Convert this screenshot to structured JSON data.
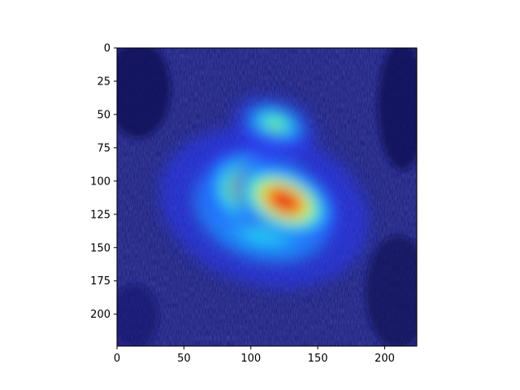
{
  "chart_data": {
    "type": "heatmap",
    "title": "",
    "xlabel": "",
    "ylabel": "",
    "xlim": [
      0,
      224
    ],
    "ylim": [
      224,
      0
    ],
    "x_ticks": [
      0,
      50,
      100,
      150,
      200
    ],
    "y_ticks": [
      0,
      25,
      50,
      75,
      100,
      125,
      150,
      175,
      200
    ],
    "x_tick_labels": [
      "0",
      "50",
      "100",
      "150",
      "200"
    ],
    "y_tick_labels": [
      "0",
      "25",
      "50",
      "75",
      "100",
      "125",
      "150",
      "175",
      "200"
    ],
    "colormap": "jet",
    "background_image": "dog photograph overlaid with attention heatmap",
    "grid": false,
    "hotspots": [
      {
        "x": 125,
        "y": 115,
        "intensity": 1.0,
        "spread_x": 30,
        "spread_y": 18
      },
      {
        "x": 95,
        "y": 105,
        "intensity": 0.75,
        "spread_x": 22,
        "spread_y": 22
      },
      {
        "x": 118,
        "y": 58,
        "intensity": 0.55,
        "spread_x": 22,
        "spread_y": 14
      },
      {
        "x": 110,
        "y": 120,
        "intensity": 0.55,
        "spread_x": 55,
        "spread_y": 40
      }
    ]
  }
}
